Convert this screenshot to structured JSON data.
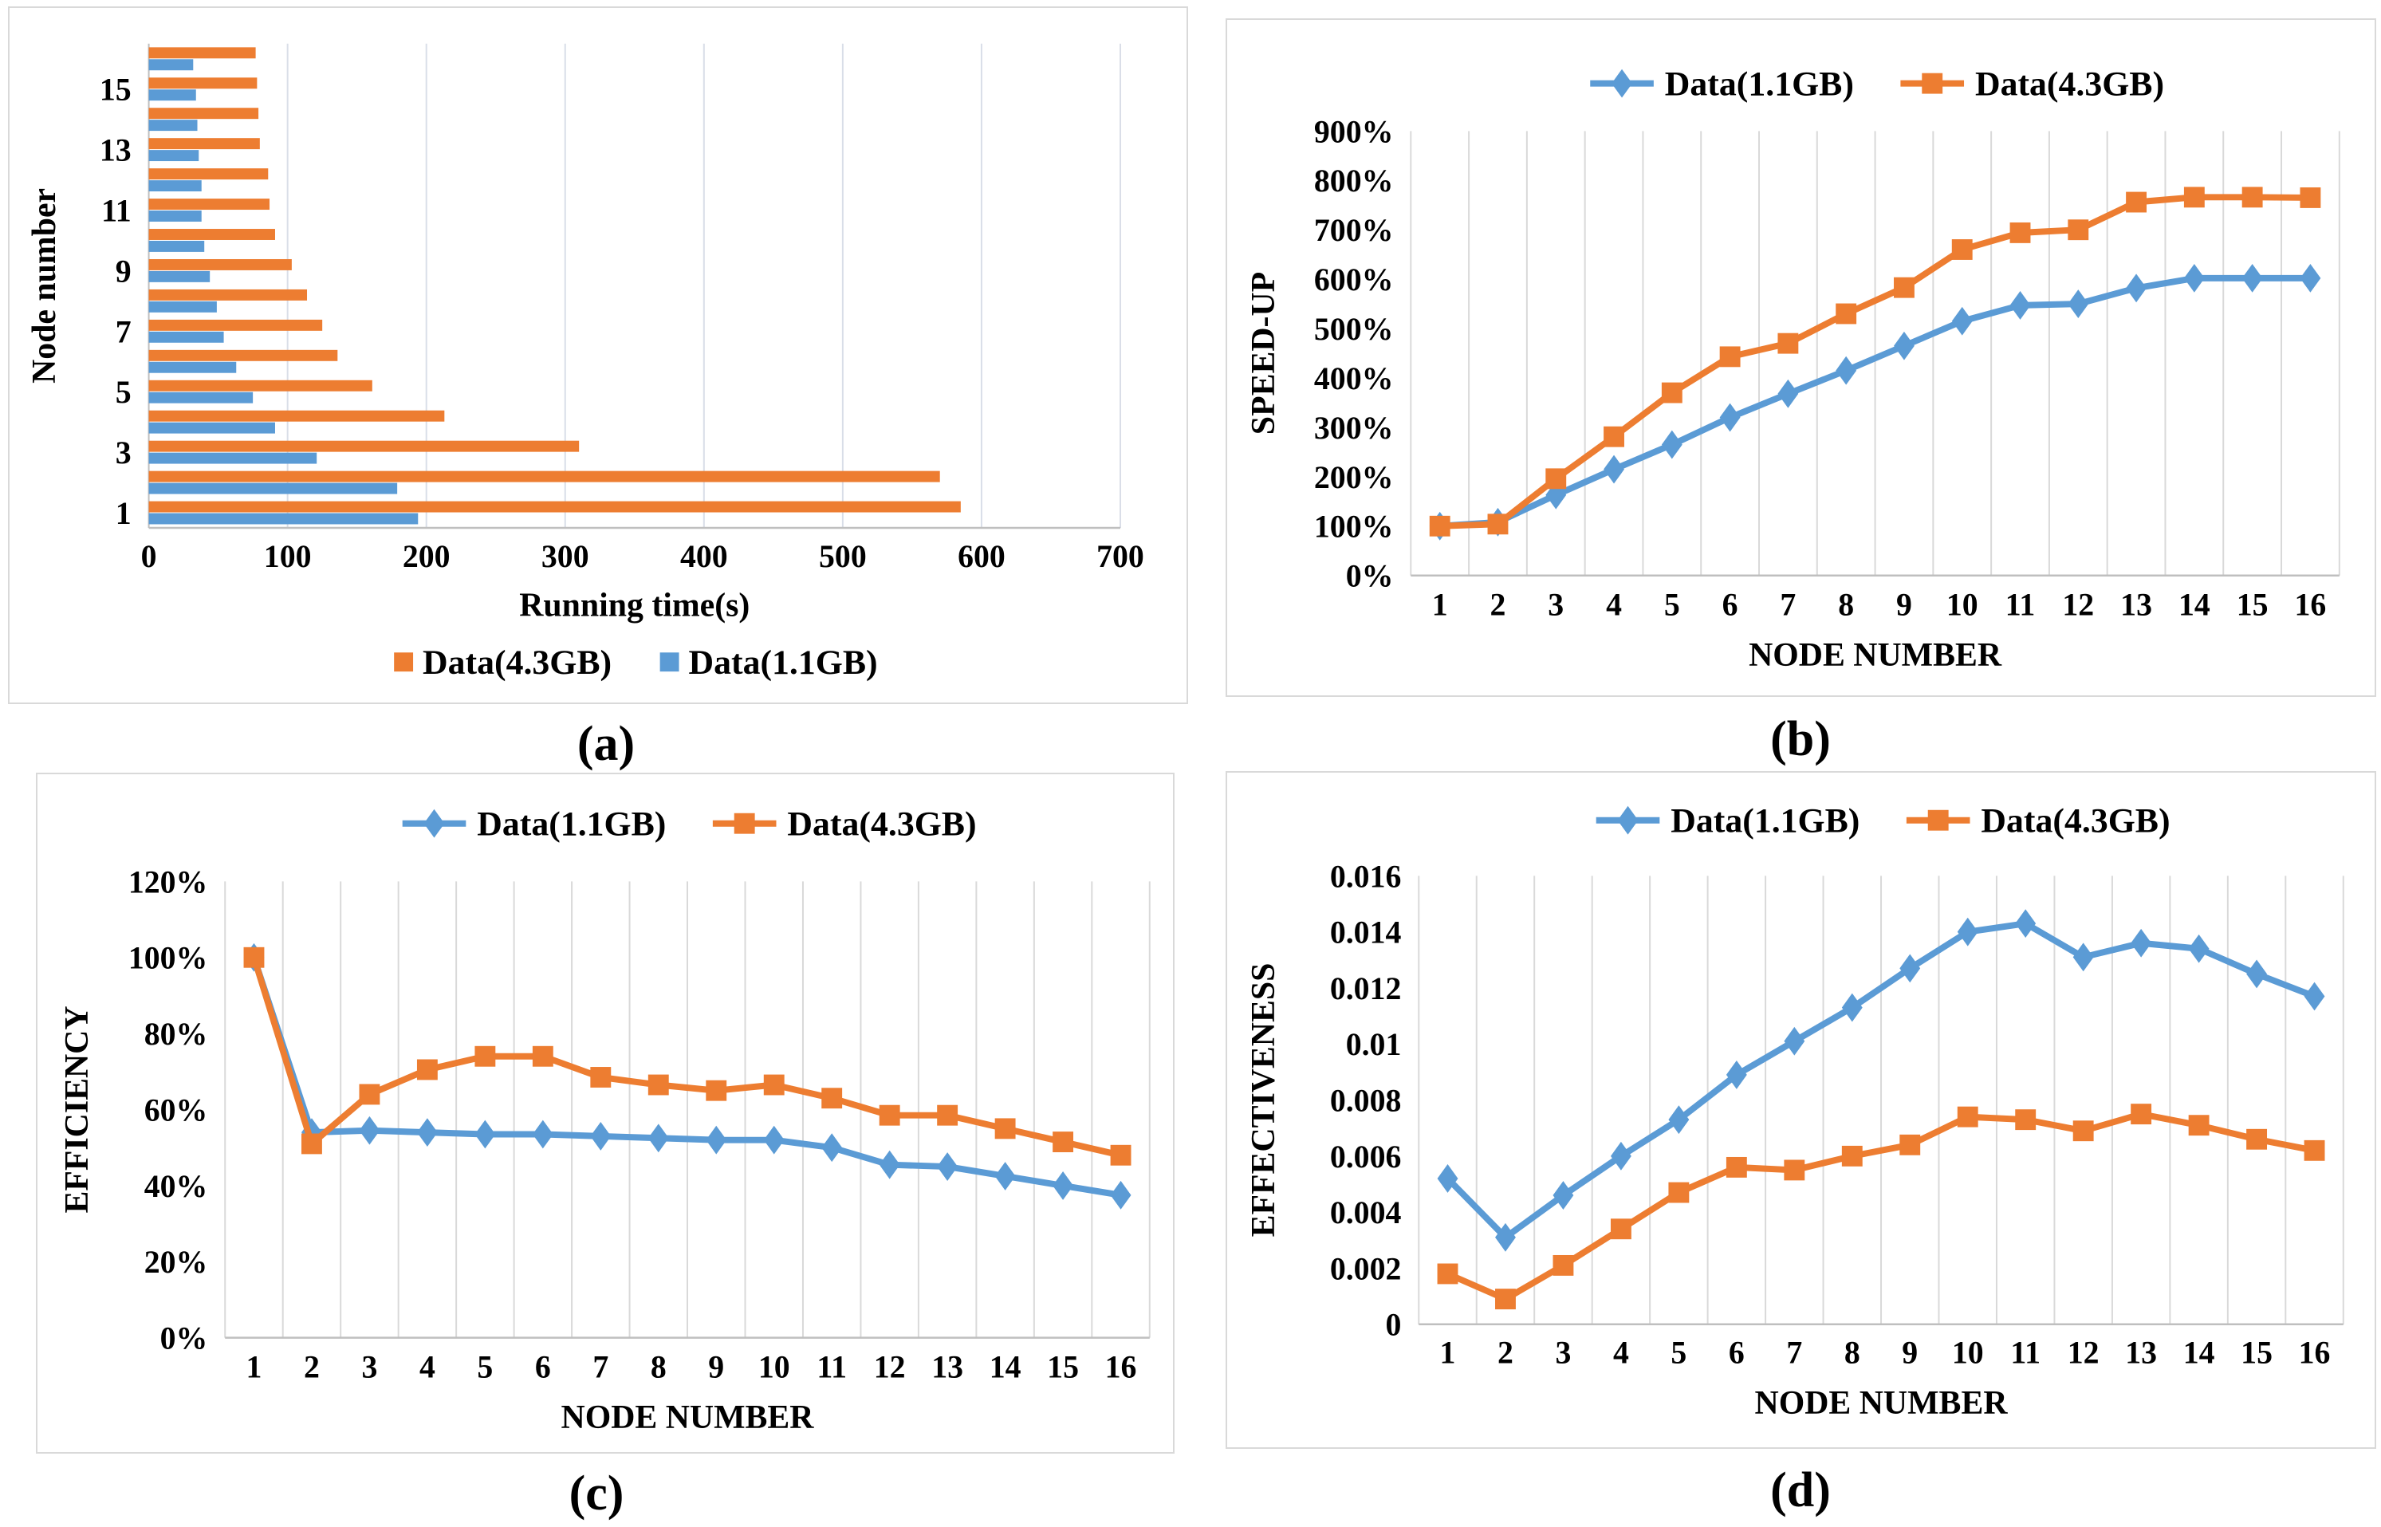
{
  "figure": {
    "colors": {
      "blue": "#5B9BD5",
      "orange": "#ED7D31",
      "grid": "#D9D9D9",
      "axis": "#BFBFBF"
    }
  },
  "chart_data": [
    {
      "id": "a",
      "type": "bar",
      "orientation": "horizontal",
      "caption": "(a)",
      "xlabel": "Running time(s)",
      "ylabel": "Node number",
      "xlim": [
        0,
        700
      ],
      "x_ticks": [
        {
          "v": 0,
          "label": "0"
        },
        {
          "v": 100,
          "label": "100"
        },
        {
          "v": 200,
          "label": "200"
        },
        {
          "v": 300,
          "label": "300"
        },
        {
          "v": 400,
          "label": "400"
        },
        {
          "v": 500,
          "label": "500"
        },
        {
          "v": 600,
          "label": "600"
        },
        {
          "v": 700,
          "label": "700"
        }
      ],
      "categories": [
        1,
        2,
        3,
        4,
        5,
        6,
        7,
        8,
        9,
        10,
        11,
        12,
        13,
        14,
        15,
        16
      ],
      "shown_category_labels": [
        1,
        3,
        5,
        7,
        9,
        11,
        13,
        15
      ],
      "series": [
        {
          "name": "Data(4.3GB)",
          "key": "data-4-3gb",
          "color": "#ED7D31",
          "marker": "square",
          "values": [
            585,
            570,
            310,
            213,
            161,
            136,
            125,
            114,
            103,
            91,
            87,
            86,
            80,
            79,
            78,
            77
          ]
        },
        {
          "name": "Data(1.1GB)",
          "key": "data-1-1gb",
          "color": "#5B9BD5",
          "marker": "square",
          "values": [
            194,
            179,
            121,
            91,
            75,
            63,
            54,
            49,
            44,
            40,
            38,
            38,
            36,
            35,
            34,
            32
          ]
        }
      ]
    },
    {
      "id": "b",
      "type": "line",
      "caption": "(b)",
      "xlabel": "NODE NUMBER",
      "ylabel": "SPEED-UP",
      "x": [
        1,
        2,
        3,
        4,
        5,
        6,
        7,
        8,
        9,
        10,
        11,
        12,
        13,
        14,
        15,
        16
      ],
      "ylim": [
        0,
        900
      ],
      "y_ticks": [
        {
          "v": 0,
          "label": "0%"
        },
        {
          "v": 100,
          "label": "100%"
        },
        {
          "v": 200,
          "label": "200%"
        },
        {
          "v": 300,
          "label": "300%"
        },
        {
          "v": 400,
          "label": "400%"
        },
        {
          "v": 500,
          "label": "500%"
        },
        {
          "v": 600,
          "label": "600%"
        },
        {
          "v": 700,
          "label": "700%"
        },
        {
          "v": 800,
          "label": "800%"
        },
        {
          "v": 900,
          "label": "900%"
        }
      ],
      "series": [
        {
          "name": "Data(1.1GB)",
          "key": "data-1-1gb",
          "color": "#5B9BD5",
          "marker": "diamond",
          "values": [
            100,
            108,
            163,
            215,
            265,
            320,
            368,
            415,
            465,
            515,
            547,
            550,
            582,
            602,
            602,
            602
          ]
        },
        {
          "name": "Data(4.3GB)",
          "key": "data-4-3gb",
          "color": "#ED7D31",
          "marker": "square",
          "values": [
            100,
            104,
            196,
            281,
            370,
            443,
            470,
            530,
            583,
            660,
            694,
            700,
            756,
            766,
            766,
            765
          ]
        }
      ]
    },
    {
      "id": "c",
      "type": "line",
      "caption": "(c)",
      "xlabel": "NODE NUMBER",
      "ylabel": "EFFICIENCY",
      "x": [
        1,
        2,
        3,
        4,
        5,
        6,
        7,
        8,
        9,
        10,
        11,
        12,
        13,
        14,
        15,
        16
      ],
      "ylim": [
        0,
        120
      ],
      "y_ticks": [
        {
          "v": 0,
          "label": "0%"
        },
        {
          "v": 20,
          "label": "20%"
        },
        {
          "v": 40,
          "label": "40%"
        },
        {
          "v": 60,
          "label": "60%"
        },
        {
          "v": 80,
          "label": "80%"
        },
        {
          "v": 100,
          "label": "100%"
        },
        {
          "v": 120,
          "label": "120%"
        }
      ],
      "series": [
        {
          "name": "Data(1.1GB)",
          "key": "data-1-1gb",
          "color": "#5B9BD5",
          "marker": "diamond",
          "values": [
            100,
            54,
            54.5,
            54,
            53.5,
            53.5,
            53,
            52.5,
            52,
            52,
            50,
            45.5,
            45,
            42.5,
            40,
            37.5
          ]
        },
        {
          "name": "Data(4.3GB)",
          "key": "data-4-3gb",
          "color": "#ED7D31",
          "marker": "square",
          "values": [
            100,
            51,
            64,
            70.5,
            74,
            74,
            68.5,
            66.5,
            65,
            66.5,
            63,
            58.5,
            58.5,
            55,
            51.5,
            48
          ]
        }
      ]
    },
    {
      "id": "d",
      "type": "line",
      "caption": "(d)",
      "xlabel": "NODE NUMBER",
      "ylabel": "EFFECTIVENESS",
      "x": [
        1,
        2,
        3,
        4,
        5,
        6,
        7,
        8,
        9,
        10,
        11,
        12,
        13,
        14,
        15,
        16
      ],
      "ylim": [
        0,
        0.016
      ],
      "y_ticks": [
        {
          "v": 0,
          "label": "0"
        },
        {
          "v": 0.002,
          "label": "0.002"
        },
        {
          "v": 0.004,
          "label": "0.004"
        },
        {
          "v": 0.006,
          "label": "0.006"
        },
        {
          "v": 0.008,
          "label": "0.008"
        },
        {
          "v": 0.01,
          "label": "0.01"
        },
        {
          "v": 0.012,
          "label": "0.012"
        },
        {
          "v": 0.014,
          "label": "0.014"
        },
        {
          "v": 0.016,
          "label": "0.016"
        }
      ],
      "series": [
        {
          "name": "Data(1.1GB)",
          "key": "data-1-1gb",
          "color": "#5B9BD5",
          "marker": "diamond",
          "values": [
            0.0052,
            0.0031,
            0.0046,
            0.006,
            0.0073,
            0.0089,
            0.0101,
            0.0113,
            0.0127,
            0.014,
            0.0143,
            0.0131,
            0.0136,
            0.0134,
            0.0125,
            0.0117
          ]
        },
        {
          "name": "Data(4.3GB)",
          "key": "data-4-3gb",
          "color": "#ED7D31",
          "marker": "square",
          "values": [
            0.0018,
            0.0009,
            0.0021,
            0.0034,
            0.0047,
            0.0056,
            0.0055,
            0.006,
            0.0064,
            0.0074,
            0.0073,
            0.0069,
            0.0075,
            0.0071,
            0.0066,
            0.0062
          ]
        }
      ]
    }
  ]
}
